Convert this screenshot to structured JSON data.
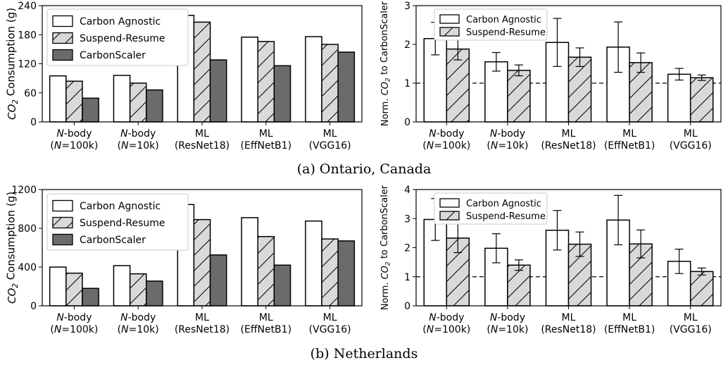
{
  "figure": {
    "caption_a": "(a) Ontario, Canada",
    "caption_b": "(b) Netherlands"
  },
  "colors": {
    "carbon_agnostic": "#ffffff",
    "suspend_resume": "#d9d9d9",
    "carbonscaler": "#6b6b6b",
    "edge": "#000000"
  },
  "chart_data": [
    {
      "id": "ontario-consumption",
      "type": "bar",
      "categories": [
        [
          "N-body",
          "(N=100k)"
        ],
        [
          "N-body",
          "(N=10k)"
        ],
        [
          "ML",
          "(ResNet18)"
        ],
        [
          "ML",
          "(EffNetB1)"
        ],
        [
          "ML",
          "(VGG16)"
        ]
      ],
      "ylabel": "CO2 Consumption (g)",
      "ylim": [
        0,
        240
      ],
      "yticks": [
        0,
        60,
        120,
        180,
        240
      ],
      "legend_position": "upper-left",
      "series": [
        {
          "name": "Carbon Agnostic",
          "values": [
            95,
            96,
            220,
            175,
            176
          ]
        },
        {
          "name": "Suspend-Resume",
          "values": [
            84,
            80,
            206,
            166,
            160
          ]
        },
        {
          "name": "CarbonScaler",
          "values": [
            49,
            66,
            128,
            116,
            144
          ]
        }
      ]
    },
    {
      "id": "ontario-normalized",
      "type": "bar",
      "categories": [
        [
          "N-body",
          "(N=100k)"
        ],
        [
          "N-body",
          "(N=10k)"
        ],
        [
          "ML",
          "(ResNet18)"
        ],
        [
          "ML",
          "(EffNetB1)"
        ],
        [
          "ML",
          "(VGG16)"
        ]
      ],
      "ylabel": "Norm. CO2 to CarbonScaler",
      "ylim": [
        0,
        3
      ],
      "yticks": [
        0,
        1,
        2,
        3
      ],
      "reference_line": 1,
      "legend_position": "upper-left",
      "series": [
        {
          "name": "Carbon Agnostic",
          "values": [
            2.15,
            1.55,
            2.05,
            1.93,
            1.23
          ],
          "errors": [
            0.42,
            0.24,
            0.62,
            0.65,
            0.15
          ]
        },
        {
          "name": "Suspend-Resume",
          "values": [
            1.88,
            1.33,
            1.67,
            1.53,
            1.14
          ],
          "errors": [
            0.28,
            0.14,
            0.24,
            0.25,
            0.07
          ]
        }
      ]
    },
    {
      "id": "netherlands-consumption",
      "type": "bar",
      "categories": [
        [
          "N-body",
          "(N=100k)"
        ],
        [
          "N-body",
          "(N=10k)"
        ],
        [
          "ML",
          "(ResNet18)"
        ],
        [
          "ML",
          "(EffNetB1)"
        ],
        [
          "ML",
          "(VGG16)"
        ]
      ],
      "ylabel": "CO2 Consumption (g)",
      "ylim": [
        0,
        1200
      ],
      "yticks": [
        0,
        400,
        800,
        1200
      ],
      "legend_position": "upper-left",
      "series": [
        {
          "name": "Carbon Agnostic",
          "values": [
            400,
            415,
            1045,
            910,
            875
          ]
        },
        {
          "name": "Suspend-Resume",
          "values": [
            337,
            330,
            890,
            715,
            690
          ]
        },
        {
          "name": "CarbonScaler",
          "values": [
            180,
            255,
            525,
            420,
            670
          ]
        }
      ]
    },
    {
      "id": "netherlands-normalized",
      "type": "bar",
      "categories": [
        [
          "N-body",
          "(N=100k)"
        ],
        [
          "N-body",
          "(N=10k)"
        ],
        [
          "ML",
          "(ResNet18)"
        ],
        [
          "ML",
          "(EffNetB1)"
        ],
        [
          "ML",
          "(VGG16)"
        ]
      ],
      "ylabel": "Norm. CO2 to CarbonScaler",
      "ylim": [
        0,
        4
      ],
      "yticks": [
        0,
        1,
        2,
        3,
        4
      ],
      "reference_line": 1,
      "legend_position": "upper-left",
      "series": [
        {
          "name": "Carbon Agnostic",
          "values": [
            2.97,
            1.98,
            2.6,
            2.95,
            1.53
          ],
          "errors": [
            0.72,
            0.5,
            0.68,
            0.85,
            0.42
          ]
        },
        {
          "name": "Suspend-Resume",
          "values": [
            2.33,
            1.4,
            2.12,
            2.13,
            1.18
          ],
          "errors": [
            0.5,
            0.18,
            0.42,
            0.48,
            0.12
          ]
        }
      ]
    }
  ]
}
